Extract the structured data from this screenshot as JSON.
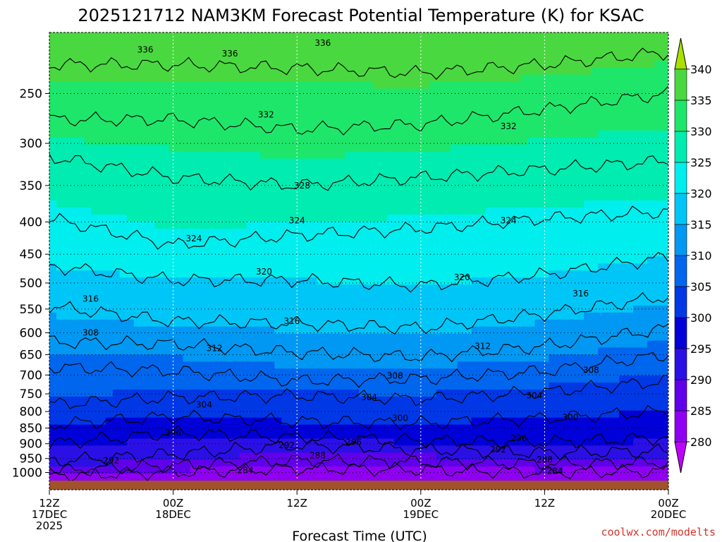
{
  "title": "2025121712 NAM3KM Forecast Potential Temperature (K) for KSAC",
  "credit": "coolwx.com/modelts",
  "colors": {
    "ground": "#a0522d",
    "credit": "#d6342a"
  },
  "chart_data": {
    "type": "heatmap",
    "title": "2025121712 NAM3KM Forecast Potential Temperature (K) for KSAC",
    "xlabel": "Forecast Time (UTC)",
    "ylabel": "",
    "x_range_hours": [
      0,
      60
    ],
    "y_scale": "log",
    "y_range_hpa": [
      1030,
      200
    ],
    "y_ticks": [
      "250",
      "300",
      "350",
      "400",
      "450",
      "500",
      "550",
      "600",
      "650",
      "700",
      "750",
      "800",
      "850",
      "900",
      "950",
      "1000"
    ],
    "x_ticks": [
      {
        "label": "12Z",
        "sub": [
          "17DEC",
          "2025"
        ]
      },
      {
        "label": "00Z",
        "sub": [
          "18DEC"
        ]
      },
      {
        "label": "12Z",
        "sub": []
      },
      {
        "label": "00Z",
        "sub": [
          "19DEC"
        ]
      },
      {
        "label": "12Z",
        "sub": []
      },
      {
        "label": "00Z",
        "sub": [
          "20DEC"
        ]
      }
    ],
    "grid": "dotted",
    "colorbar": {
      "ticks": [
        "340",
        "335",
        "330",
        "325",
        "320",
        "315",
        "310",
        "305",
        "300",
        "295",
        "290",
        "285",
        "280"
      ],
      "levels": [
        280,
        285,
        290,
        295,
        300,
        305,
        310,
        315,
        320,
        325,
        330,
        335,
        340
      ],
      "colors": [
        "#c000ff",
        "#8f00f2",
        "#6000ea",
        "#2b10e6",
        "#0000d8",
        "#0038e6",
        "#0066ee",
        "#0098f2",
        "#00c6f8",
        "#00eeee",
        "#00ecb0",
        "#1ee66a",
        "#4ad840",
        "#7cd020",
        "#a8e000"
      ]
    },
    "profile_hours": [
      0,
      12,
      24,
      36,
      48,
      60
    ],
    "isentrope_pressures_hpa": {
      "284": [
        1010,
        1000,
        985,
        990,
        1000,
        995
      ],
      "288": [
        995,
        975,
        958,
        962,
        968,
        965
      ],
      "292": [
        960,
        935,
        905,
        920,
        930,
        925
      ],
      "296": [
        900,
        865,
        880,
        890,
        895,
        880
      ],
      "300": [
        840,
        815,
        830,
        835,
        820,
        800
      ],
      "304": [
        780,
        760,
        755,
        765,
        745,
        715
      ],
      "308": [
        680,
        690,
        715,
        710,
        690,
        650
      ],
      "312": [
        620,
        625,
        645,
        655,
        630,
        590
      ],
      "316": [
        545,
        575,
        580,
        590,
        560,
        525
      ],
      "320": [
        470,
        495,
        495,
        505,
        485,
        455
      ],
      "324": [
        395,
        435,
        420,
        410,
        395,
        385
      ],
      "328": [
        315,
        340,
        350,
        340,
        330,
        320
      ],
      "332": [
        275,
        275,
        285,
        280,
        265,
        250
      ],
      "336": [
        225,
        225,
        228,
        232,
        225,
        215
      ]
    },
    "contour_labels": [
      {
        "text": "336",
        "hour": 9.3,
        "p": 213
      },
      {
        "text": "336",
        "hour": 17.5,
        "p": 216
      },
      {
        "text": "336",
        "hour": 26.5,
        "p": 208
      },
      {
        "text": "332",
        "hour": 21.0,
        "p": 270
      },
      {
        "text": "332",
        "hour": 44.5,
        "p": 282
      },
      {
        "text": "328",
        "hour": 24.5,
        "p": 350
      },
      {
        "text": "324",
        "hour": 14.0,
        "p": 425
      },
      {
        "text": "324",
        "hour": 24.0,
        "p": 398
      },
      {
        "text": "324",
        "hour": 44.5,
        "p": 398
      },
      {
        "text": "320",
        "hour": 20.8,
        "p": 480
      },
      {
        "text": "320",
        "hour": 40.0,
        "p": 490
      },
      {
        "text": "316",
        "hour": 4.0,
        "p": 530
      },
      {
        "text": "316",
        "hour": 23.5,
        "p": 575
      },
      {
        "text": "316",
        "hour": 51.5,
        "p": 520
      },
      {
        "text": "312",
        "hour": 16.0,
        "p": 635
      },
      {
        "text": "312",
        "hour": 42.0,
        "p": 630
      },
      {
        "text": "308",
        "hour": 4.0,
        "p": 600
      },
      {
        "text": "308",
        "hour": 33.5,
        "p": 702
      },
      {
        "text": "308",
        "hour": 52.5,
        "p": 688
      },
      {
        "text": "304",
        "hour": 15.0,
        "p": 780
      },
      {
        "text": "304",
        "hour": 31.0,
        "p": 760
      },
      {
        "text": "304",
        "hour": 47.0,
        "p": 755
      },
      {
        "text": "300",
        "hour": 34.0,
        "p": 820
      },
      {
        "text": "300",
        "hour": 50.5,
        "p": 818
      },
      {
        "text": "296",
        "hour": 12.0,
        "p": 865
      },
      {
        "text": "296",
        "hour": 29.5,
        "p": 895
      },
      {
        "text": "296",
        "hour": 45.5,
        "p": 882
      },
      {
        "text": "292",
        "hour": 6.0,
        "p": 957
      },
      {
        "text": "292",
        "hour": 23.0,
        "p": 905
      },
      {
        "text": "292",
        "hour": 43.5,
        "p": 920
      },
      {
        "text": "288",
        "hour": 26.0,
        "p": 940
      },
      {
        "text": "288",
        "hour": 48.0,
        "p": 955
      },
      {
        "text": "284",
        "hour": 19.0,
        "p": 992
      },
      {
        "text": "284",
        "hour": 49.0,
        "p": 995
      }
    ]
  }
}
